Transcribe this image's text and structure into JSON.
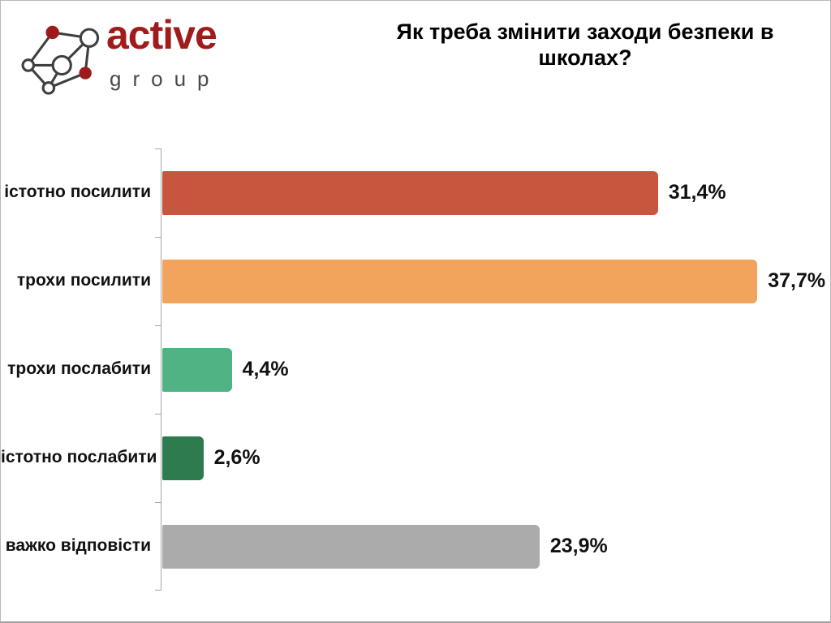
{
  "logo": {
    "brand": "active",
    "sub": "group",
    "brand_color": "#A01C1C",
    "sub_color": "#4A4A4A",
    "icon": {
      "name": "network-nodes-icon",
      "node_fill_color": "#9E1B1B",
      "outline_color": "#3F3F3F"
    }
  },
  "chart_data": {
    "type": "bar",
    "orientation": "horizontal",
    "title": "Як треба змінити заходи безпеки в школах?",
    "categories": [
      "істотно посилити",
      "трохи посилити",
      "трохи послабити",
      "істотно послабити",
      "важко відповісти"
    ],
    "values": [
      31.4,
      37.7,
      4.4,
      2.6,
      23.9
    ],
    "value_labels": [
      "31,4%",
      "37,7%",
      "4,4%",
      "2,6%",
      "23,9%"
    ],
    "bar_colors": [
      "#C8563F",
      "#F2A45C",
      "#50B383",
      "#2E7B50",
      "#ABABAB"
    ],
    "xlabel": "",
    "ylabel": "",
    "xlim": [
      0,
      40
    ],
    "grid": false,
    "legend": false,
    "axis_color": "#A6A6A6"
  }
}
